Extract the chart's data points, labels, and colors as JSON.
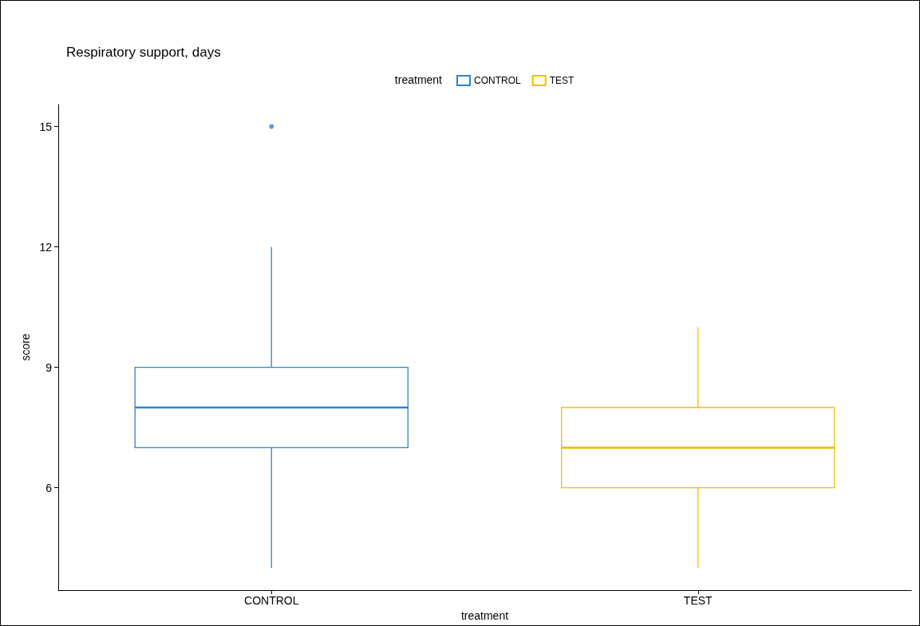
{
  "chart_data": {
    "type": "box",
    "title": "Respiratory support, days",
    "xlabel": "treatment",
    "ylabel": "score",
    "legend_title": "treatment",
    "legend": "top",
    "grid": false,
    "categories": [
      "CONTROL",
      "TEST"
    ],
    "ylim": [
      3.45,
      15.55
    ],
    "yticks": [
      6,
      9,
      12,
      15
    ],
    "series": [
      {
        "name": "CONTROL",
        "color": "#2b83d0",
        "boxes": [
          {
            "low": 4,
            "q1": 7,
            "median": 8,
            "q3": 9,
            "high": 12,
            "outliers": [
              15
            ]
          },
          null
        ]
      },
      {
        "name": "TEST",
        "color": "#efc000",
        "boxes": [
          null,
          {
            "low": 4,
            "q1": 6,
            "median": 7,
            "q3": 8,
            "high": 10
          }
        ]
      }
    ]
  }
}
